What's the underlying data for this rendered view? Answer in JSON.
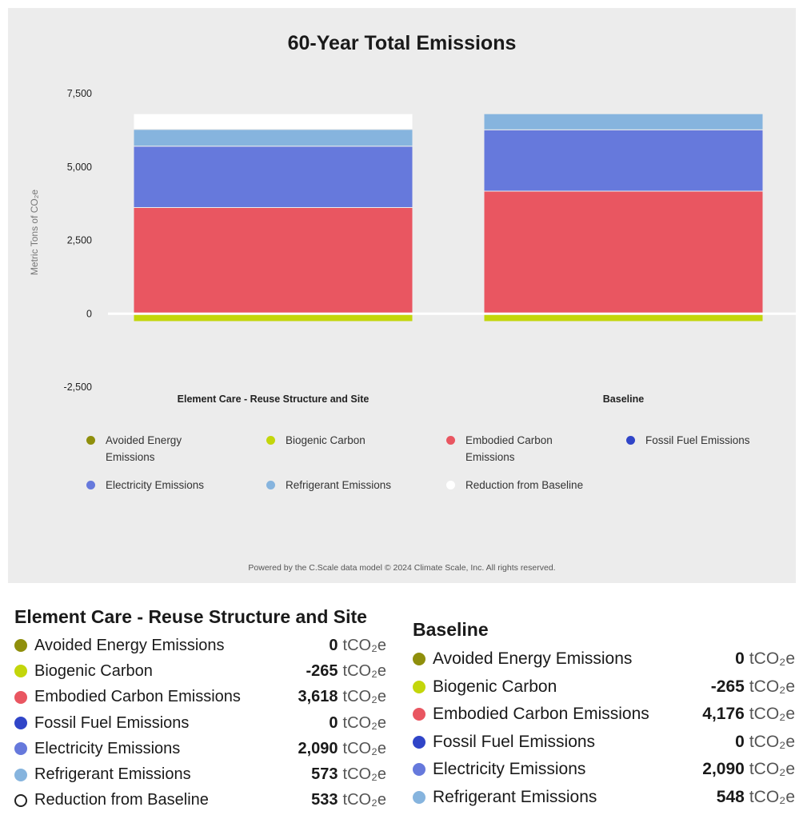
{
  "chart_data": {
    "type": "bar",
    "stacked": true,
    "title": "60-Year Total Emissions",
    "xlabel": "",
    "ylabel": "Metric Tons of CO₂e",
    "ylim": [
      -2500,
      7500
    ],
    "yticks": [
      "7,500",
      "5,000",
      "2,500",
      "0",
      "-2,500"
    ],
    "ytick_values": [
      7500,
      5000,
      2500,
      0,
      -2500
    ],
    "categories": [
      "Element Care - Reuse Structure and Site",
      "Baseline"
    ],
    "series": [
      {
        "name": "Avoided Energy Emissions",
        "color": "#8f8f0c",
        "values": [
          0,
          0
        ]
      },
      {
        "name": "Biogenic Carbon",
        "color": "#c3d60b",
        "values": [
          -265,
          -265
        ]
      },
      {
        "name": "Embodied Carbon Emissions",
        "color": "#e95661",
        "values": [
          3618,
          4176
        ]
      },
      {
        "name": "Fossil Fuel Emissions",
        "color": "#3045c8",
        "values": [
          0,
          0
        ]
      },
      {
        "name": "Electricity Emissions",
        "color": "#6679dc",
        "values": [
          2090,
          2090
        ]
      },
      {
        "name": "Refrigerant Emissions",
        "color": "#86b4de",
        "values": [
          573,
          548
        ]
      },
      {
        "name": "Reduction from Baseline",
        "color": "#ffffff",
        "values": [
          533,
          0
        ]
      }
    ],
    "grid": false,
    "legend_position": "bottom"
  },
  "footer_note": "Powered by the C.Scale data model © 2024 Climate Scale, Inc. All rights reserved.",
  "summary": {
    "unit": "tCO₂e",
    "left": {
      "title": "Element Care - Reuse Structure and Site",
      "rows": [
        {
          "label": "Avoided Energy Emissions",
          "value": "0",
          "color": "#8f8f0c"
        },
        {
          "label": "Biogenic Carbon",
          "value": "-265",
          "color": "#c3d60b"
        },
        {
          "label": "Embodied Carbon Emissions",
          "value": "3,618",
          "color": "#e95661"
        },
        {
          "label": "Fossil Fuel Emissions",
          "value": "0",
          "color": "#3045c8"
        },
        {
          "label": "Electricity Emissions",
          "value": "2,090",
          "color": "#6679dc"
        },
        {
          "label": "Refrigerant Emissions",
          "value": "573",
          "color": "#86b4de"
        },
        {
          "label": "Reduction from Baseline",
          "value": "533",
          "color": "#ffffff"
        }
      ]
    },
    "right": {
      "title": "Baseline",
      "rows": [
        {
          "label": "Avoided Energy Emissions",
          "value": "0",
          "color": "#8f8f0c"
        },
        {
          "label": "Biogenic Carbon",
          "value": "-265",
          "color": "#c3d60b"
        },
        {
          "label": "Embodied Carbon Emissions",
          "value": "4,176",
          "color": "#e95661"
        },
        {
          "label": "Fossil Fuel Emissions",
          "value": "0",
          "color": "#3045c8"
        },
        {
          "label": "Electricity Emissions",
          "value": "2,090",
          "color": "#6679dc"
        },
        {
          "label": "Refrigerant Emissions",
          "value": "548",
          "color": "#86b4de"
        }
      ]
    }
  }
}
